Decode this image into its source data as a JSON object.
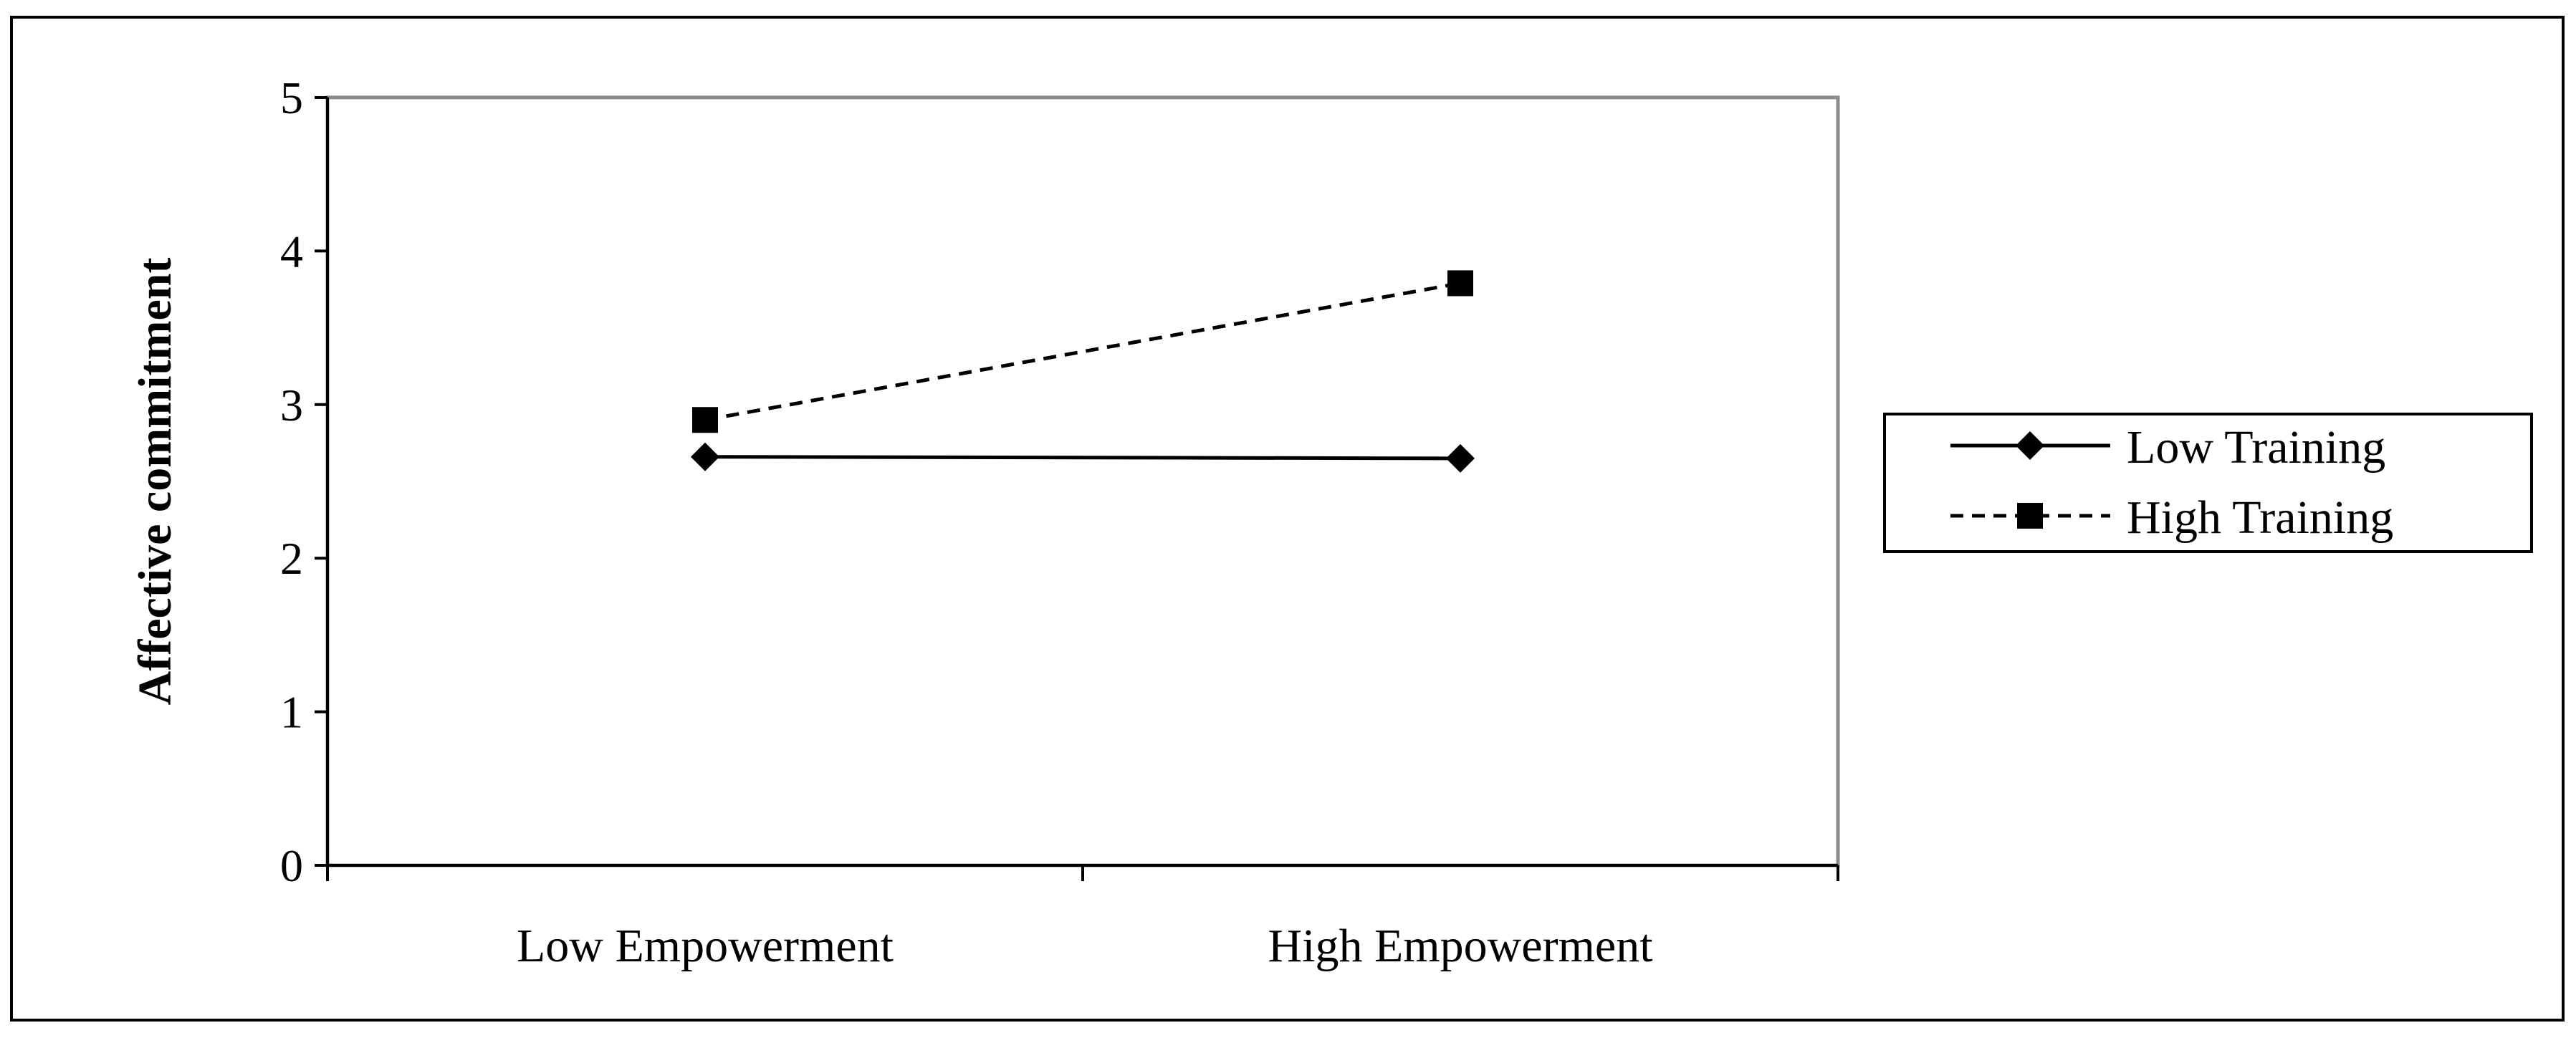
{
  "chart_data": {
    "type": "line",
    "title": "",
    "xlabel": "",
    "ylabel": "Affective commitment",
    "categories": [
      "Low Empowerment",
      "High Empowerment"
    ],
    "ylim": [
      0,
      5
    ],
    "yticks": [
      "0",
      "1",
      "2",
      "3",
      "4",
      "5"
    ],
    "grid": false,
    "legend_position": "right",
    "series": [
      {
        "name": "Low Training",
        "values": [
          2.66,
          2.65
        ],
        "line_style": "solid",
        "marker": "diamond",
        "color": "#000000"
      },
      {
        "name": "High Training",
        "values": [
          2.9,
          3.79
        ],
        "line_style": "dashed",
        "marker": "square",
        "color": "#000000"
      }
    ]
  }
}
